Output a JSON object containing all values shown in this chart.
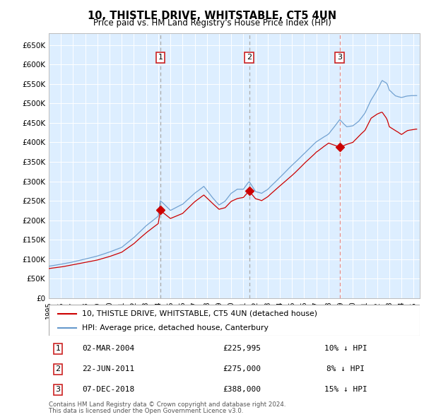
{
  "title": "10, THISTLE DRIVE, WHITSTABLE, CT5 4UN",
  "subtitle": "Price paid vs. HM Land Registry's House Price Index (HPI)",
  "legend_property": "10, THISTLE DRIVE, WHITSTABLE, CT5 4UN (detached house)",
  "legend_hpi": "HPI: Average price, detached house, Canterbury",
  "transactions": [
    {
      "num": 1,
      "date": "02-MAR-2004",
      "price": 225995,
      "pct": "10% ↓ HPI"
    },
    {
      "num": 2,
      "date": "22-JUN-2011",
      "price": 275000,
      "pct": "8% ↓ HPI"
    },
    {
      "num": 3,
      "date": "07-DEC-2018",
      "price": 388000,
      "pct": "15% ↓ HPI"
    }
  ],
  "transaction_dates_decimal": [
    2004.17,
    2011.47,
    2018.92
  ],
  "transaction_prices": [
    225995,
    275000,
    388000
  ],
  "ylabel_ticks": [
    "£0",
    "£50K",
    "£100K",
    "£150K",
    "£200K",
    "£250K",
    "£300K",
    "£350K",
    "£400K",
    "£450K",
    "£500K",
    "£550K",
    "£600K",
    "£650K"
  ],
  "ytick_values": [
    0,
    50000,
    100000,
    150000,
    200000,
    250000,
    300000,
    350000,
    400000,
    450000,
    500000,
    550000,
    600000,
    650000
  ],
  "xmin": 1995.0,
  "xmax": 2025.5,
  "ymin": 0,
  "ymax": 680000,
  "color_property": "#cc0000",
  "color_hpi": "#6699cc",
  "bg_color": "#ddeeff",
  "grid_color": "#ffffff",
  "footnote_line1": "Contains HM Land Registry data © Crown copyright and database right 2024.",
  "footnote_line2": "This data is licensed under the Open Government Licence v3.0.",
  "xtick_years": [
    1995,
    1996,
    1997,
    1998,
    1999,
    2000,
    2001,
    2002,
    2003,
    2004,
    2005,
    2006,
    2007,
    2008,
    2009,
    2010,
    2011,
    2012,
    2013,
    2014,
    2015,
    2016,
    2017,
    2018,
    2019,
    2020,
    2021,
    2022,
    2023,
    2024,
    2025
  ]
}
